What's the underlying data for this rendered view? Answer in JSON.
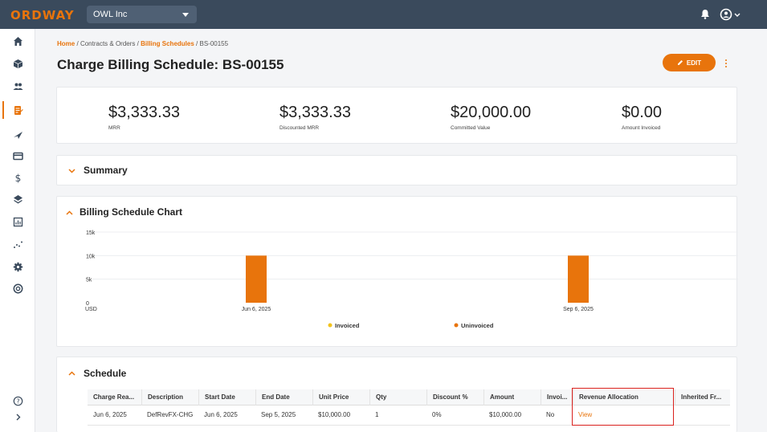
{
  "app": {
    "logo_text": "ORDWAY",
    "org_selected": "OWL Inc"
  },
  "sidebar": {
    "items": [
      {
        "icon": "home-icon"
      },
      {
        "icon": "cube-icon"
      },
      {
        "icon": "customers-icon"
      },
      {
        "icon": "billing-schedule-icon",
        "active": true
      },
      {
        "icon": "send-icon"
      },
      {
        "icon": "card-icon"
      },
      {
        "icon": "dollar-icon"
      },
      {
        "icon": "layers-icon"
      },
      {
        "icon": "reports-icon"
      },
      {
        "icon": "analytics-icon"
      },
      {
        "icon": "settings-icon"
      },
      {
        "icon": "support-icon"
      }
    ],
    "bottom": [
      {
        "icon": "help-icon"
      },
      {
        "icon": "expand-icon"
      }
    ]
  },
  "breadcrumb": {
    "home": "Home",
    "sep": "/",
    "contracts": "Contracts & Orders",
    "billing": "Billing Schedules",
    "current": "BS-00155"
  },
  "page": {
    "title": "Charge Billing Schedule: BS-00155",
    "edit_label": "EDIT"
  },
  "metrics": [
    {
      "value": "$3,333.33",
      "label": "MRR"
    },
    {
      "value": "$3,333.33",
      "label": "Discounted MRR"
    },
    {
      "value": "$20,000.00",
      "label": "Committed Value"
    },
    {
      "value": "$0.00",
      "label": "Amount Invoiced"
    }
  ],
  "sections": {
    "summary": "Summary",
    "chart": "Billing Schedule Chart",
    "schedule": "Schedule"
  },
  "chart_data": {
    "type": "bar",
    "categories": [
      "Jun 6, 2025",
      "Sep 6, 2025"
    ],
    "series": [
      {
        "name": "Invoiced",
        "color": "#f2c21b",
        "values": [
          0,
          0
        ]
      },
      {
        "name": "Uninvoiced",
        "color": "#e8740c",
        "values": [
          10000,
          10000
        ]
      }
    ],
    "y_ticks": [
      "0",
      "5k",
      "10k",
      "15k"
    ],
    "ylim": [
      0,
      15000
    ],
    "x_unit_label": "USD",
    "legend_position": "bottom"
  },
  "table": {
    "columns": [
      "Charge Rea...",
      "Description",
      "Start Date",
      "End Date",
      "Unit Price",
      "Qty",
      "Discount %",
      "Amount",
      "Invoi...",
      "Revenue Allocation",
      "Inherited Fr..."
    ],
    "rows": [
      [
        "Jun 6, 2025",
        "DefRevFX-CHG",
        "Jun 6, 2025",
        "Sep 5, 2025",
        "$10,000.00",
        "1",
        "0%",
        "$10,000.00",
        "No",
        "View",
        ""
      ]
    ]
  },
  "colors": {
    "accent": "#e8740c",
    "topbar": "#3a4a5c",
    "highlight": "#d9211d"
  }
}
